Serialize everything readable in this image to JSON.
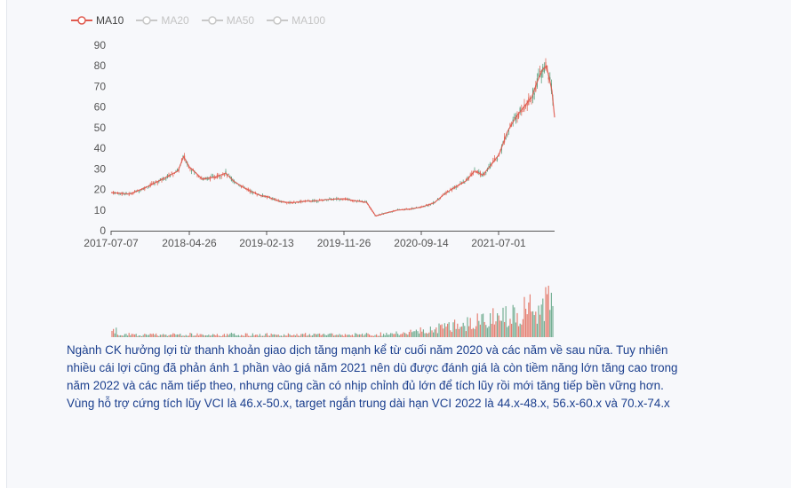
{
  "legend": [
    {
      "label": "MA10",
      "active": true
    },
    {
      "label": "MA20",
      "active": false
    },
    {
      "label": "MA50",
      "active": false
    },
    {
      "label": "MA100",
      "active": false
    }
  ],
  "colors": {
    "ma10": "#e05a4f",
    "inactive": "#c8c8c8",
    "up": "#e26b5b",
    "down": "#5fa383",
    "text": "#1b3f8e"
  },
  "chart_data": {
    "type": "line",
    "title": "",
    "ylim": [
      0,
      90
    ],
    "yticks": [
      0,
      10,
      20,
      30,
      40,
      50,
      60,
      70,
      80,
      90
    ],
    "xticks": [
      "2017-07-07",
      "2018-04-26",
      "2019-02-13",
      "2019-11-26",
      "2020-09-14",
      "2021-07-01"
    ],
    "grid": false,
    "legend_position": "top-left",
    "series": [
      {
        "name": "MA10",
        "x": [
          "2017-07-07",
          "2017-09-15",
          "2017-11-15",
          "2018-01-15",
          "2018-03-15",
          "2018-04-05",
          "2018-04-26",
          "2018-06-15",
          "2018-08-01",
          "2018-09-10",
          "2018-10-10",
          "2018-11-15",
          "2018-12-15",
          "2019-01-20",
          "2019-02-13",
          "2019-04-01",
          "2019-05-15",
          "2019-07-01",
          "2019-08-15",
          "2019-10-01",
          "2019-11-26",
          "2020-01-15",
          "2020-02-20",
          "2020-03-25",
          "2020-04-30",
          "2020-06-15",
          "2020-07-30",
          "2020-09-14",
          "2020-10-30",
          "2020-12-10",
          "2021-01-15",
          "2021-02-25",
          "2021-04-01",
          "2021-05-01",
          "2021-06-01",
          "2021-07-01",
          "2021-08-01",
          "2021-09-01",
          "2021-10-01",
          "2021-11-01",
          "2021-11-20",
          "2021-12-10",
          "2021-12-25",
          "2022-01-05",
          "2022-01-15",
          "2022-01-25"
        ],
        "values": [
          18.5,
          17.8,
          21,
          25,
          29,
          36,
          31,
          25,
          26,
          28,
          24,
          21,
          19,
          17,
          16.5,
          14.2,
          13.5,
          14.3,
          14.5,
          15.2,
          15.5,
          14.4,
          13.8,
          7.2,
          8.5,
          10,
          10.5,
          11.5,
          13.5,
          18,
          21,
          24,
          29,
          27,
          32,
          37,
          48,
          55,
          60,
          65,
          72,
          78,
          80,
          74,
          68,
          55
        ]
      }
    ],
    "volume": {
      "description": "trading volume bars, low until 2020, rising sharply through 2021",
      "y_axis": "none"
    }
  },
  "article": {
    "paragraph1": "Ngành CK hưởng lợi từ thanh khoản giao dịch tăng mạnh kể từ cuối năm 2020 và các năm về sau nữa. Tuy nhiên nhiều cái lợi cũng đã phản ánh 1 phần vào giá năm 2021 nên dù được đánh giá là còn tiềm năng lớn tăng cao trong năm 2022 và các năm tiếp theo, nhưng cũng cần có nhịp chỉnh đủ lớn để tích lũy rồi mới tăng tiếp bền vững hơn.",
    "paragraph2": "Vùng hỗ trợ cứng tích lũy VCI là 46.x-50.x, target ngắn trung dài hạn VCI 2022 là 44.x-48.x, 56.x-60.x và 70.x-74.x"
  }
}
